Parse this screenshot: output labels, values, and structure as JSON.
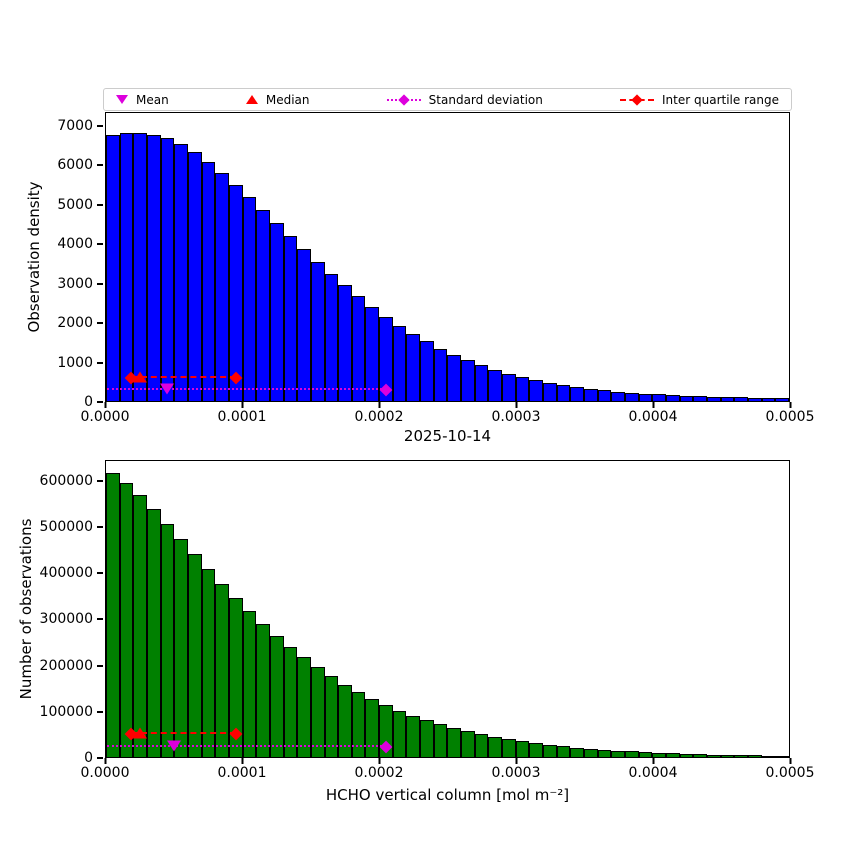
{
  "legend": {
    "items": [
      {
        "label": "Mean",
        "marker": "triangle-down",
        "color": "#dd00dd"
      },
      {
        "label": "Median",
        "marker": "triangle-up",
        "color": "#ff0000"
      },
      {
        "label": "Standard deviation",
        "marker": "diamond-dotted-line",
        "color": "#dd00dd"
      },
      {
        "label": "Inter quartile range",
        "marker": "diamond-dashed-line",
        "color": "#ff0000"
      }
    ]
  },
  "figure": {
    "date_title": "2025-10-14",
    "xlabel": "HCHO vertical column [mol m⁻²]"
  },
  "chart_data": [
    {
      "type": "bar",
      "subtype": "histogram",
      "title": "",
      "ylabel": "Observation density",
      "bar_color": "#0000ff",
      "bar_edge_color": "#000000",
      "xlim": [
        0,
        0.0005
      ],
      "ylim": [
        0,
        7350
      ],
      "bin_start": 0,
      "bin_width": 1e-05,
      "grid": false,
      "yticks": [
        0,
        1000,
        2000,
        3000,
        4000,
        5000,
        6000,
        7000
      ],
      "ytick_labels": [
        "0",
        "1000",
        "2000",
        "3000",
        "4000",
        "5000",
        "6000",
        "7000"
      ],
      "xticks": [
        0,
        0.0001,
        0.0002,
        0.0003,
        0.0004,
        0.0005
      ],
      "xtick_labels": [
        "0.0000",
        "0.0001",
        "0.0002",
        "0.0003",
        "0.0004",
        "0.0005"
      ],
      "values": [
        6780,
        6830,
        6850,
        6800,
        6700,
        6550,
        6350,
        6100,
        5820,
        5520,
        5210,
        4870,
        4540,
        4200,
        3870,
        3550,
        3240,
        2950,
        2670,
        2400,
        2150,
        1920,
        1710,
        1520,
        1340,
        1180,
        1040,
        910,
        800,
        700,
        610,
        535,
        470,
        410,
        360,
        315,
        275,
        240,
        215,
        190,
        170,
        150,
        135,
        120,
        110,
        100,
        90,
        82,
        75,
        68
      ],
      "markers": {
        "mean": {
          "x": 4.5e-05,
          "y": 310,
          "color": "#dd00dd"
        },
        "median": {
          "x": 2.5e-05,
          "y": 620,
          "color": "#ff0000"
        },
        "iqr": {
          "x1": 1.8e-05,
          "x2": 9.5e-05,
          "y": 600,
          "style": "dashed",
          "color": "#ff0000",
          "diamonds": [
            1.8e-05,
            9.5e-05
          ]
        },
        "std": {
          "x1": 1e-06,
          "x2": 0.000205,
          "y": 280,
          "style": "dotted",
          "color": "#dd00dd",
          "diamonds": [
            0.000205
          ]
        }
      }
    },
    {
      "type": "bar",
      "subtype": "histogram",
      "title": "",
      "ylabel": "Number of observations",
      "bar_color": "#008000",
      "bar_edge_color": "#000000",
      "xlim": [
        0,
        0.0005
      ],
      "ylim": [
        0,
        645000
      ],
      "bin_start": 0,
      "bin_width": 1e-05,
      "grid": false,
      "yticks": [
        0,
        100000,
        200000,
        300000,
        400000,
        500000,
        600000
      ],
      "ytick_labels": [
        "0",
        "100000",
        "200000",
        "300000",
        "400000",
        "500000",
        "600000"
      ],
      "xticks": [
        0,
        0.0001,
        0.0002,
        0.0003,
        0.0004,
        0.0005
      ],
      "xtick_labels": [
        "0.0000",
        "0.0001",
        "0.0002",
        "0.0003",
        "0.0004",
        "0.0005"
      ],
      "values": [
        618000,
        598000,
        570000,
        540000,
        508000,
        475000,
        442000,
        410000,
        378000,
        347000,
        318000,
        290000,
        264000,
        240000,
        217000,
        196000,
        176000,
        158000,
        142000,
        127000,
        113000,
        101000,
        90000,
        80000,
        71000,
        63000,
        56000,
        49500,
        43800,
        38700,
        34100,
        30000,
        26400,
        23200,
        20400,
        17900,
        15700,
        13800,
        12100,
        10600,
        9300,
        8100,
        7100,
        6200,
        5400,
        4700,
        4100,
        3600,
        3100,
        2700
      ],
      "markers": {
        "mean": {
          "x": 5e-05,
          "y": 24000,
          "color": "#dd00dd"
        },
        "median": {
          "x": 2.5e-05,
          "y": 52000,
          "color": "#ff0000"
        },
        "iqr": {
          "x1": 1.8e-05,
          "x2": 9.5e-05,
          "y": 50000,
          "style": "dashed",
          "color": "#ff0000",
          "diamonds": [
            1.8e-05,
            9.5e-05
          ]
        },
        "std": {
          "x1": 1e-06,
          "x2": 0.000205,
          "y": 21000,
          "style": "dotted",
          "color": "#dd00dd",
          "diamonds": [
            0.000205
          ]
        }
      }
    }
  ]
}
